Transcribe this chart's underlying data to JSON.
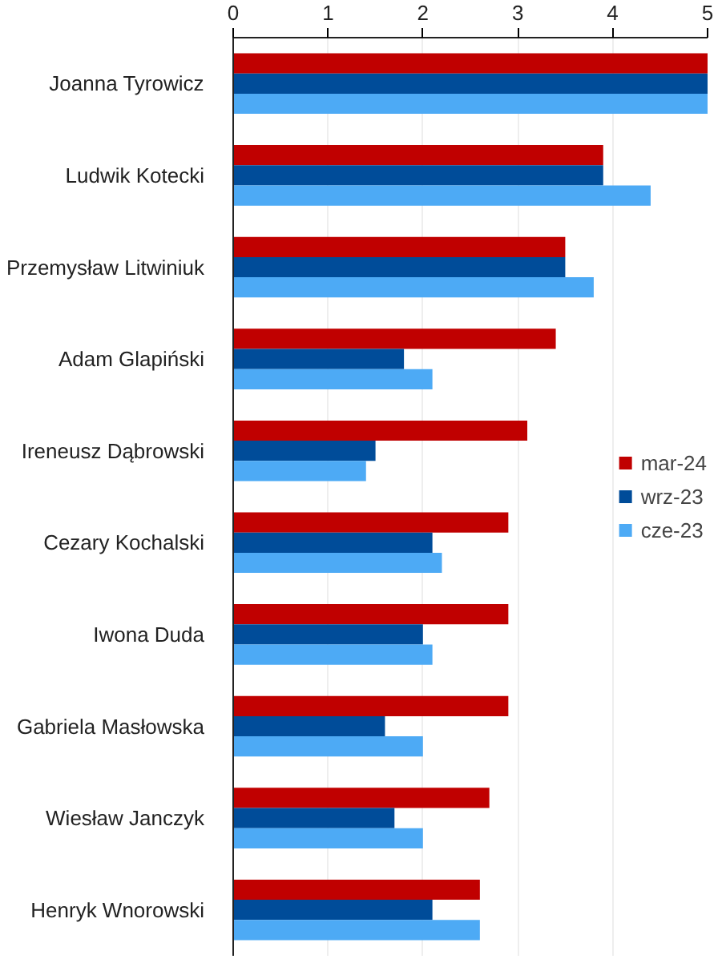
{
  "chart_data": {
    "type": "bar",
    "orientation": "horizontal",
    "categories": [
      "Joanna Tyrowicz",
      "Ludwik Kotecki",
      "Przemysław Litwiniuk",
      "Adam Glapiński",
      "Ireneusz Dąbrowski",
      "Cezary Kochalski",
      "Iwona Duda",
      "Gabriela Masłowska",
      "Wiesław Janczyk",
      "Henryk Wnorowski"
    ],
    "series": [
      {
        "name": "mar-24",
        "color": "#c00000",
        "values": [
          5,
          3.9,
          3.5,
          3.4,
          3.1,
          2.9,
          2.9,
          2.9,
          2.7,
          2.6
        ]
      },
      {
        "name": "wrz-23",
        "color": "#004c99",
        "values": [
          5,
          3.9,
          3.5,
          1.8,
          1.5,
          2.1,
          2.0,
          1.6,
          1.7,
          2.1
        ]
      },
      {
        "name": "cze-23",
        "color": "#4daaf5",
        "values": [
          5,
          4.4,
          3.8,
          2.1,
          1.4,
          2.2,
          2.1,
          2.0,
          2.0,
          2.6
        ]
      }
    ],
    "xlim": [
      0,
      5
    ],
    "xticks": [
      0,
      1,
      2,
      3,
      4,
      5
    ],
    "grid": "x",
    "legend": "right"
  }
}
